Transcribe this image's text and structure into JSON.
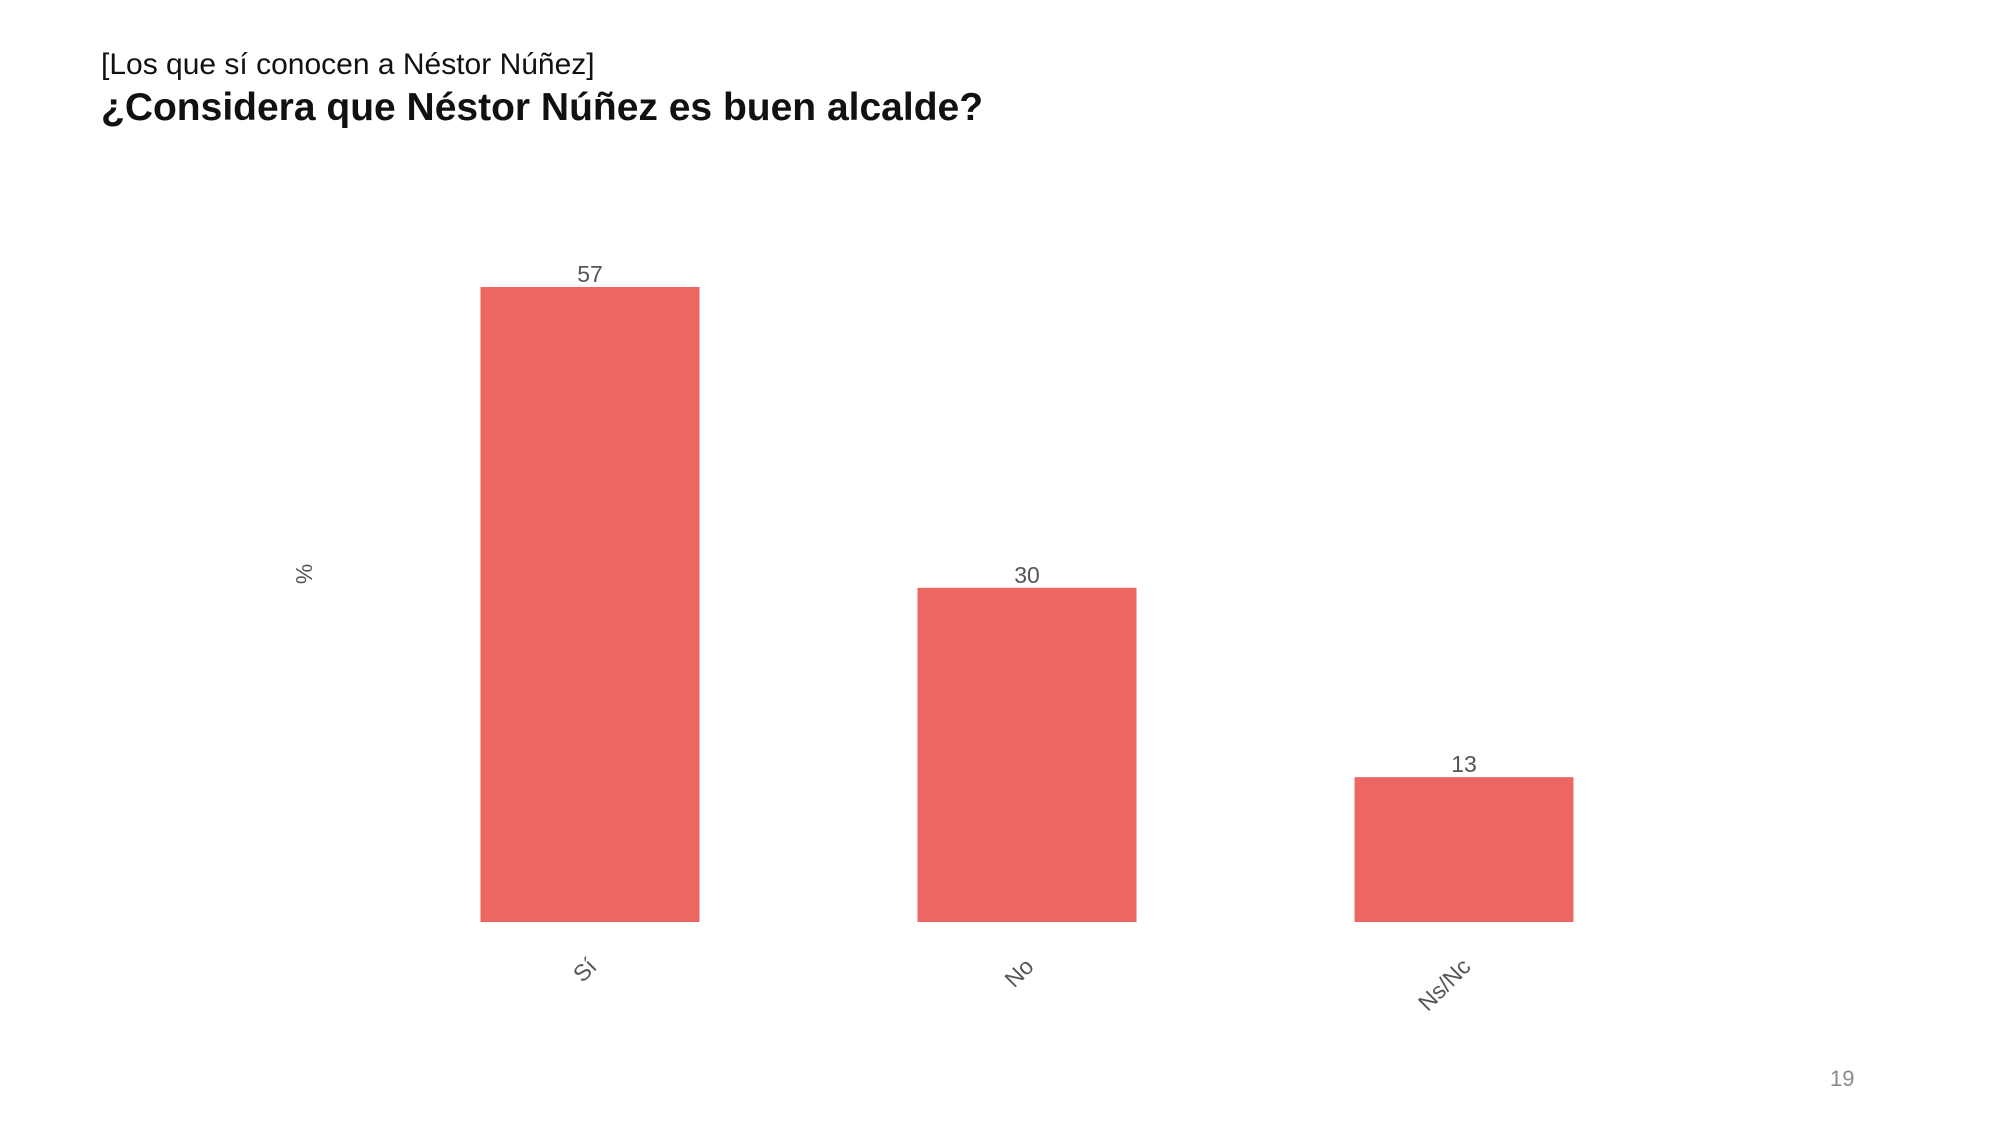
{
  "header": {
    "subtitle": "[Los que sí conocen a Néstor Núñez]",
    "title": "¿Considera que Néstor Núñez es buen alcalde?"
  },
  "chart_data": {
    "type": "bar",
    "categories": [
      "Sí",
      "No",
      "Ns/Nc"
    ],
    "values": [
      57,
      30,
      13
    ],
    "data_labels": [
      "57",
      "30",
      "13"
    ],
    "title": "¿Considera que Néstor Núñez es buen alcalde?",
    "subtitle": "[Los que sí conocen a Néstor Núñez]",
    "xlabel": "",
    "ylabel": "%",
    "ylim": [
      0,
      57
    ],
    "grid": false,
    "legend": "none",
    "bar_color": "#ec6662"
  },
  "footer": {
    "page_number": "19"
  }
}
